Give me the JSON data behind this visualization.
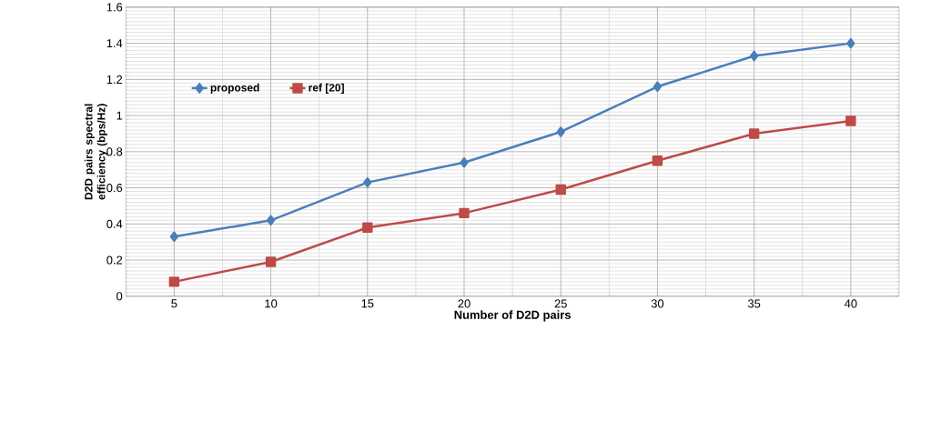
{
  "chart_data": {
    "type": "line",
    "xlabel": "Number of D2D pairs",
    "ylabel": "D2D pairs spectral efficiency (bps/Hz)",
    "categories": [
      "5",
      "10",
      "15",
      "20",
      "25",
      "30",
      "35",
      "40"
    ],
    "series": [
      {
        "name": "proposed",
        "color": "#4a7ebb",
        "marker": "diamond",
        "values": [
          0.33,
          0.42,
          0.63,
          0.74,
          0.91,
          1.16,
          1.33,
          1.4
        ]
      },
      {
        "name": "ref [20]",
        "color": "#be4b48",
        "marker": "square",
        "values": [
          0.08,
          0.19,
          0.38,
          0.46,
          0.59,
          0.75,
          0.9,
          0.97
        ]
      }
    ],
    "ylim": [
      0,
      1.6
    ],
    "yticks": [
      0,
      0.2,
      0.4,
      0.6,
      0.8,
      1,
      1.2,
      1.4,
      1.6
    ],
    "grid": true,
    "legend": "top left"
  }
}
